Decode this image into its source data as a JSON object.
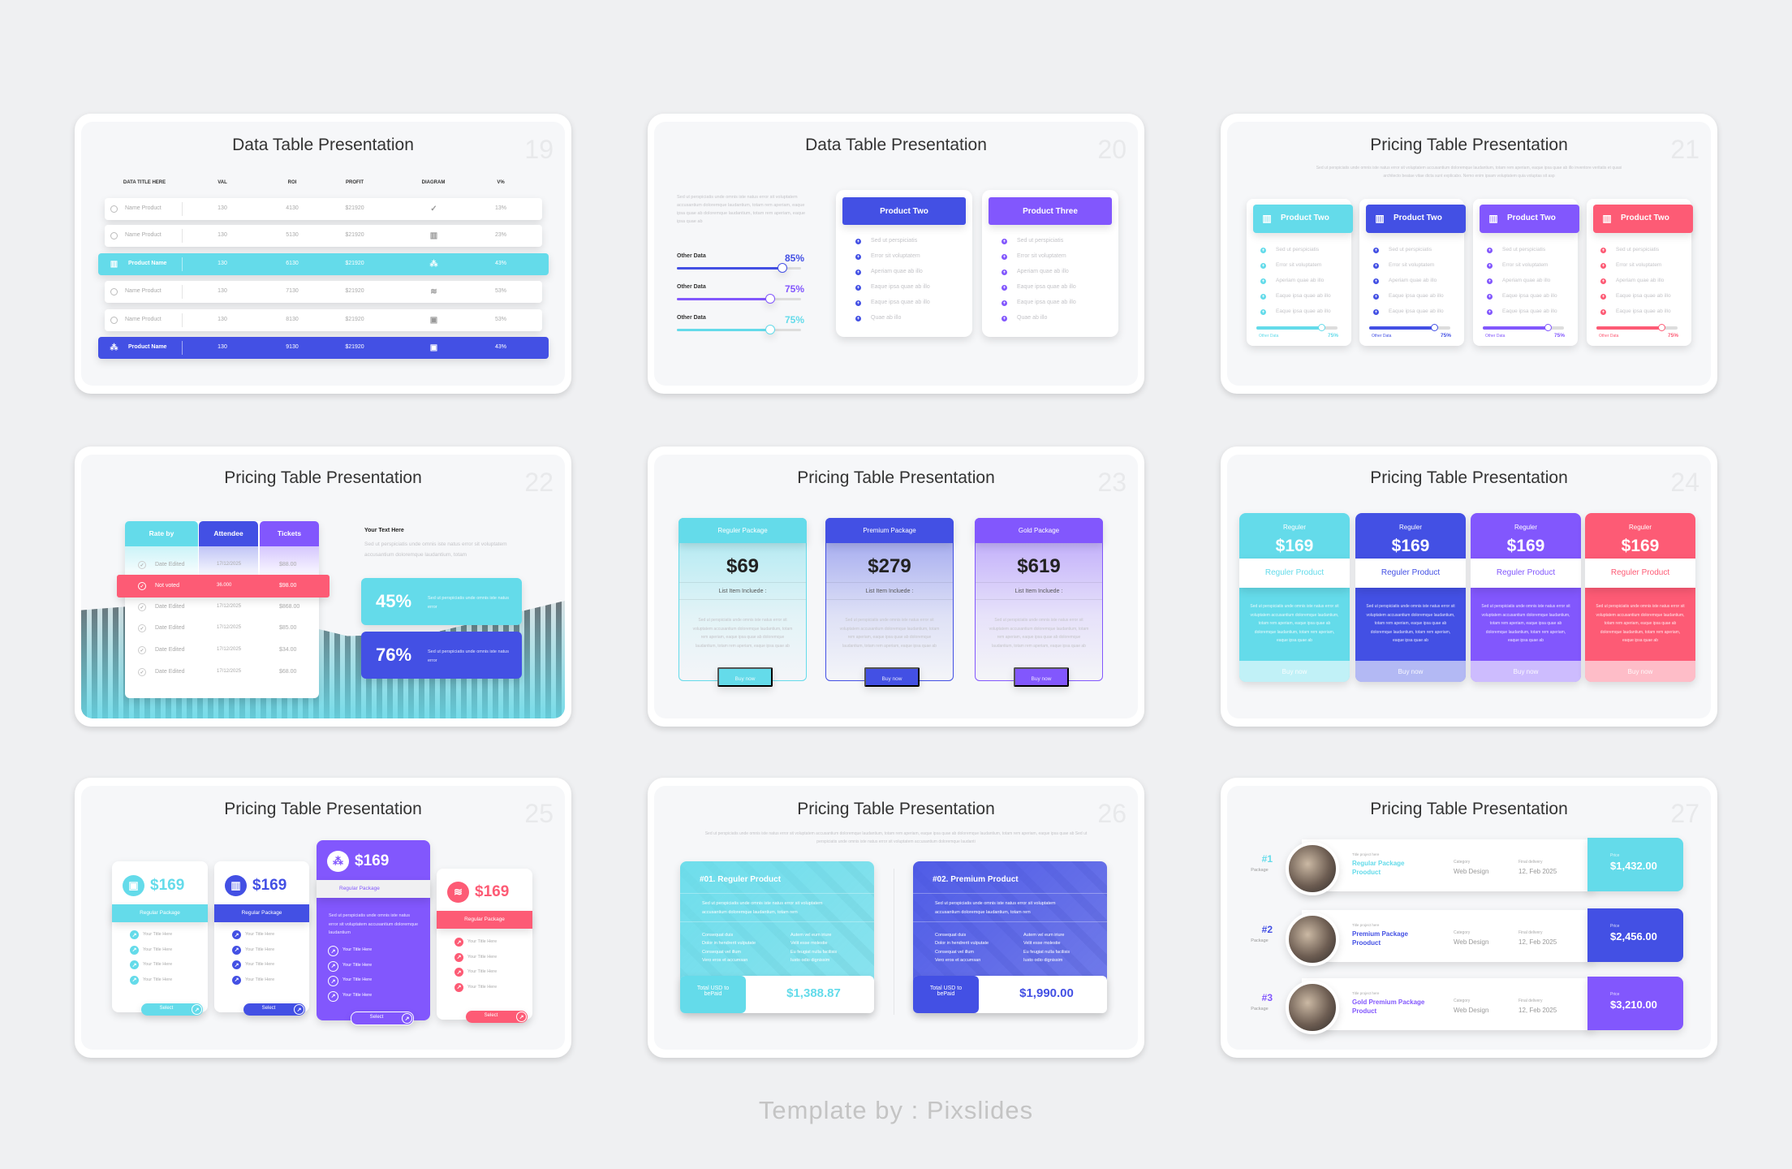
{
  "palette": {
    "cyan": "#64dbea",
    "blue": "#4350e4",
    "purple": "#8257fd",
    "red": "#fd5b75"
  },
  "footer": "Template by : Pixslides",
  "slides": [
    {
      "number": "19",
      "title": "Data Table Presentation",
      "layout": "dataTable",
      "headers": [
        "DATA TITLE HERE",
        "VAL",
        "ROI",
        "PROFIT",
        "DIAGRAM",
        "V%"
      ],
      "rows": [
        {
          "name": "Name Product",
          "val": "130",
          "roi": "4130",
          "profit": "$21920",
          "diagram_icon": "check-circle",
          "pct": "13%",
          "highlight": null
        },
        {
          "name": "Name Product",
          "val": "130",
          "roi": "5130",
          "profit": "$21920",
          "diagram_icon": "bar-chart",
          "pct": "23%",
          "highlight": null
        },
        {
          "name": "Product Name",
          "val": "130",
          "roi": "6130",
          "profit": "$21920",
          "diagram_icon": "hierarchy",
          "pct": "43%",
          "highlight": "#64dbea",
          "lead_icon": "bar-chart"
        },
        {
          "name": "Name Product",
          "val": "130",
          "roi": "7130",
          "profit": "$21920",
          "diagram_icon": "stack",
          "pct": "53%",
          "highlight": null
        },
        {
          "name": "Name Product",
          "val": "130",
          "roi": "8130",
          "profit": "$21920",
          "diagram_icon": "box",
          "pct": "53%",
          "highlight": null
        },
        {
          "name": "Product Name",
          "val": "130",
          "roi": "9130",
          "profit": "$21920",
          "diagram_icon": "box",
          "pct": "43%",
          "highlight": "#4350e4",
          "lead_icon": "hierarchy"
        }
      ]
    },
    {
      "number": "20",
      "title": "Data Table Presentation",
      "layout": "progressCompare",
      "description": "Sed ut perspiciatis unde omnis iste natus error sit voluptatem accusantium doloremque laudantium, totam rem aperiam, eaque ipsa quae ab doloremque laudantium, totam rem aperiam, eaque ipsa quae ab",
      "bars": [
        {
          "label": "Other Data",
          "percent": 85,
          "percent_label": "85%",
          "color": "#4350e4"
        },
        {
          "label": "Other Data",
          "percent": 75,
          "percent_label": "75%",
          "color": "#8257fd"
        },
        {
          "label": "Other Data",
          "percent": 75,
          "percent_label": "75%",
          "color": "#64dbea"
        }
      ],
      "products": [
        {
          "title": "Product Two",
          "color": "#4350e4",
          "items": [
            "Sed ut perspiciatis",
            "Error sit voluptatem",
            "Aperiam quae ab illo",
            "Eaque ipsa quae ab illo",
            "Eaque ipsa quae ab illo",
            "Quae ab illo"
          ]
        },
        {
          "title": "Product Three",
          "color": "#8257fd",
          "items": [
            "Sed ut perspiciatis",
            "Error sit voluptatem",
            "Aperiam quae ab illo",
            "Eaque ipsa quae ab illo",
            "Eaque ipsa quae ab illo",
            "Quae ab illo"
          ]
        }
      ]
    },
    {
      "number": "21",
      "title": "Pricing Table Presentation",
      "layout": "fourProducts",
      "subtitle": "Sed ut perspiciatis unde omnis iste natus error sit voluptatem accusantium doloremque laudantium, totam rem aperiam, eaque ipsa quae ab illo inventore veritatis et quasi architecto beatae vitae dicta sunt explicabo. Nemo enim ipsam voluptatem quia voluptas sit asp",
      "cards": [
        {
          "title": "Product Two",
          "color": "#64dbea",
          "items": [
            "Sed ut perspiciatis",
            "Error sit voluptatem",
            "Aperiam quae ab illo",
            "Eaque ipsa quae ab illo",
            "Eaque ipsa quae ab illo"
          ],
          "bar_label": "Other Data",
          "percent": 75,
          "percent_label": "75%"
        },
        {
          "title": "Product Two",
          "color": "#4350e4",
          "items": [
            "Sed ut perspiciatis",
            "Error sit voluptatem",
            "Aperiam quae ab illo",
            "Eaque ipsa quae ab illo",
            "Eaque ipsa quae ab illo"
          ],
          "bar_label": "Other Data",
          "percent": 75,
          "percent_label": "75%"
        },
        {
          "title": "Product Two",
          "color": "#8257fd",
          "items": [
            "Sed ut perspiciatis",
            "Error sit voluptatem",
            "Aperiam quae ab illo",
            "Eaque ipsa quae ab illo",
            "Eaque ipsa quae ab illo"
          ],
          "bar_label": "Other Data",
          "percent": 75,
          "percent_label": "75%"
        },
        {
          "title": "Product Two",
          "color": "#fd5b75",
          "items": [
            "Sed ut perspiciatis",
            "Error sit voluptatem",
            "Aperiam quae ab illo",
            "Eaque ipsa quae ab illo",
            "Eaque ipsa quae ab illo"
          ],
          "bar_label": "Other Data",
          "percent": 75,
          "percent_label": "75%"
        }
      ]
    },
    {
      "number": "22",
      "title": "Pricing Table Presentation",
      "layout": "voteTable",
      "headers": [
        {
          "label": "Rate by",
          "color": "#64dbea"
        },
        {
          "label": "Attendee",
          "color": "#4350e4"
        },
        {
          "label": "Tickets",
          "color": "#8257fd"
        }
      ],
      "rows": [
        {
          "label": "Date Edited",
          "value": "17/12/2025",
          "price": "$88.00",
          "highlight": false
        },
        {
          "label": "Not voted",
          "value": "36.000",
          "price": "$98.00",
          "highlight": true
        },
        {
          "label": "Date Edited",
          "value": "17/12/2025",
          "price": "$868.00",
          "highlight": false
        },
        {
          "label": "Date Edited",
          "value": "17/12/2025",
          "price": "$85.00",
          "highlight": false
        },
        {
          "label": "Date Edited",
          "value": "17/12/2025",
          "price": "$34.00",
          "highlight": false
        },
        {
          "label": "Date Edited",
          "value": "17/12/2025",
          "price": "$68.00",
          "highlight": false
        }
      ],
      "text_heading": "Your Text Here",
      "text_body": "Sed ut perspiciatis unde omnis iste natus error sit voluptatem accusantium doloremque laudantium, totam",
      "stats": [
        {
          "value": "45%",
          "text": "Sed ut perspiciatis unde omnis iste natus error",
          "color": "#64dbea"
        },
        {
          "value": "76%",
          "text": "Sed ut perspiciatis unde omnis iste natus error",
          "color": "#4350e4"
        }
      ]
    },
    {
      "number": "23",
      "title": "Pricing Table Presentation",
      "layout": "threePackages",
      "packages": [
        {
          "name": "Reguler Package",
          "price": "$69",
          "color": "#64dbea",
          "list_label": "List Item Incluede :",
          "description": "Sed ut perspiciatis unde omnis iste natus error sit voluptatem accusantium doloremque laudantium, totam rem aperiam, eaque ipsa quae ab doloremque laudantium, totam rem aperiam, eaque ipsa quae ab",
          "button": "Buy now"
        },
        {
          "name": "Premium Package",
          "price": "$279",
          "color": "#4350e4",
          "list_label": "List Item Incluede :",
          "description": "Sed ut perspiciatis unde omnis iste natus error sit voluptatem accusantium doloremque laudantium, totam rem aperiam, eaque ipsa quae ab doloremque laudantium, totam rem aperiam, eaque ipsa quae ab",
          "button": "Buy now"
        },
        {
          "name": "Gold Package",
          "price": "$619",
          "color": "#8257fd",
          "list_label": "List Item Incluede :",
          "description": "Sed ut perspiciatis unde omnis iste natus error sit voluptatem accusantium doloremque laudantium, totam rem aperiam, eaque ipsa quae ab doloremque laudantium, totam rem aperiam, eaque ipsa quae ab",
          "button": "Buy now"
        }
      ]
    },
    {
      "number": "24",
      "title": "Pricing Table Presentation",
      "layout": "fourPrices",
      "cards": [
        {
          "tier": "Reguler",
          "price": "$169",
          "product": "Reguler Product",
          "color": "#64dbea",
          "description": "Sed ut perspiciatis unde omnis iste natus error sit voluptatem accusantium doloremque laudantium, totam rem aperiam, eaque ipsa quae ab doloremque laudantium, totam rem aperiam, eaque ipsa quae ab",
          "button": "Buy now"
        },
        {
          "tier": "Reguler",
          "price": "$169",
          "product": "Reguler Product",
          "color": "#4350e4",
          "description": "Sed ut perspiciatis unde omnis iste natus error sit voluptatem accusantium doloremque laudantium, totam rem aperiam, eaque ipsa quae ab doloremque laudantium, totam rem aperiam, eaque ipsa quae ab",
          "button": "Buy now"
        },
        {
          "tier": "Reguler",
          "price": "$169",
          "product": "Reguler Product",
          "color": "#8257fd",
          "description": "Sed ut perspiciatis unde omnis iste natus error sit voluptatem accusantium doloremque laudantium, totam rem aperiam, eaque ipsa quae ab doloremque laudantium, totam rem aperiam, eaque ipsa quae ab",
          "button": "Buy now"
        },
        {
          "tier": "Reguler",
          "price": "$169",
          "product": "Reguler Product",
          "color": "#fd5b75",
          "description": "Sed ut perspiciatis unde omnis iste natus error sit voluptatem accusantium doloremque laudantium, totam rem aperiam, eaque ipsa quae ab doloremque laudantium, totam rem aperiam, eaque ipsa quae ab",
          "button": "Buy now"
        }
      ]
    },
    {
      "number": "25",
      "title": "Pricing Table Presentation",
      "layout": "selectCards",
      "cards": [
        {
          "icon": "box",
          "price": "$169",
          "package": "Regular Package",
          "color": "#64dbea",
          "featured": false,
          "items": [
            "Your Title Here",
            "Your Title Here",
            "Your Title Here",
            "Your Title Here"
          ],
          "button": "Select"
        },
        {
          "icon": "bar-chart",
          "price": "$169",
          "package": "Regular Package",
          "color": "#4350e4",
          "featured": false,
          "items": [
            "Your Title Here",
            "Your Title Here",
            "Your Title Here",
            "Your Title Here"
          ],
          "button": "Select"
        },
        {
          "icon": "hierarchy",
          "price": "$169",
          "package": "Regular Package",
          "color": "#8257fd",
          "featured": true,
          "description": "Sed ut perspiciatis unde omnis iste natus error sit voluptatem accusantium doloremque laudantium",
          "items": [
            "Your Title Here",
            "Your Title Here",
            "Your Title Here",
            "Your Title Here"
          ],
          "button": "Select"
        },
        {
          "icon": "stack",
          "price": "$169",
          "package": "Regular Package",
          "color": "#fd5b75",
          "featured": false,
          "items": [
            "Your Title Here",
            "Your Title Here",
            "Your Title Here",
            "Your Title Here"
          ],
          "button": "Select"
        }
      ]
    },
    {
      "number": "26",
      "title": "Pricing Table Presentation",
      "layout": "twoProducts",
      "subtitle": "Sed ut perspiciatis unde omnis iste natus error sit voluptatem accusantium doloremque laudantium, totam rem aperiam, eaque ipsa quae ab doloremque laudantium, totam rem aperiam, eaque ipsa quae ab Sed ut perspiciatis unde omnis iste natus error sit voluptatem accusantium doloremque laudanti",
      "cards": [
        {
          "title": "#01. Reguler Product",
          "color": "#64dbea",
          "description": "Sed ut perspiciatis unde omnis iste natus error sit voluptatem accusantium doloremque laudantium, totam rem",
          "bullets": [
            "Consequat duis",
            "Dolor in hendrerit vulputate",
            "Consequat vel illum",
            "Vero eros et accumsan",
            "Autem vel eum iriure",
            "Velit esse molestie",
            "Eu feugiat nulla facilisis",
            "Iusto odio dignissim"
          ],
          "total_label": "Total USD to bePaid",
          "total": "$1,388.87"
        },
        {
          "title": "#02. Premium Product",
          "color": "#4350e4",
          "description": "Sed ut perspiciatis unde omnis iste natus error sit voluptatem accusantium doloremque laudantium, totam rem",
          "bullets": [
            "Consequat duis",
            "Dolor in hendrerit vulputate",
            "Consequat vel illum",
            "Vero eros et accumsan",
            "Autem vel eum iriure",
            "Velit esse molestie",
            "Eu feugiat nulla facilisis",
            "Iusto odio dignissim"
          ],
          "total_label": "Total USD to bePaid",
          "total": "$1,990.00"
        }
      ]
    },
    {
      "number": "27",
      "title": "Pricing Table Presentation",
      "layout": "packageList",
      "rows": [
        {
          "rank": "#1",
          "rank_label": "Package",
          "project_label": "Title project here",
          "name": "Regular Package Prooduct",
          "category_label": "Category",
          "category": "Web Design",
          "delivery_label": "Final delivery",
          "delivery": "12, Feb 2025",
          "price_label": "Price",
          "price": "$1,432.00",
          "color": "#64dbea"
        },
        {
          "rank": "#2",
          "rank_label": "Package",
          "project_label": "Title project here",
          "name": "Premium Package Prooduct",
          "category_label": "Category",
          "category": "Web Design",
          "delivery_label": "Final delivery",
          "delivery": "12, Feb 2025",
          "price_label": "Price",
          "price": "$2,456.00",
          "color": "#4350e4"
        },
        {
          "rank": "#3",
          "rank_label": "Package",
          "project_label": "Title project here",
          "name": "Gold Premium Package Product",
          "category_label": "Category",
          "category": "Web Design",
          "delivery_label": "Final delivery",
          "delivery": "12, Feb 2025",
          "price_label": "Price",
          "price": "$3,210.00",
          "color": "#8257fd"
        }
      ]
    }
  ]
}
